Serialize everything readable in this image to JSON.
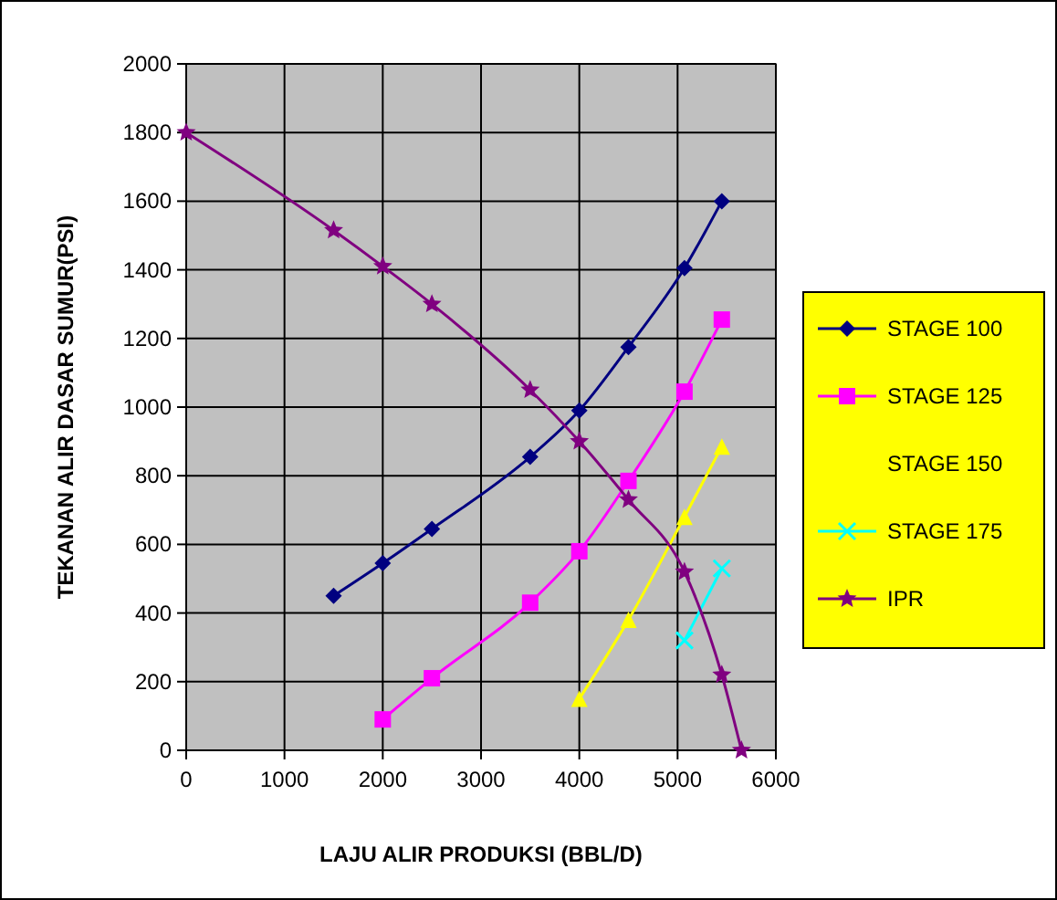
{
  "chart_data": {
    "type": "line",
    "xlabel": "LAJU ALIR PRODUKSI (BBL/D)",
    "ylabel": "TEKANAN ALIR DASAR SUMUR(PSI)",
    "xlim": [
      0,
      6000
    ],
    "ylim": [
      0,
      2000
    ],
    "xticks": [
      0,
      1000,
      2000,
      3000,
      4000,
      5000,
      6000
    ],
    "yticks": [
      0,
      200,
      400,
      600,
      800,
      1000,
      1200,
      1400,
      1600,
      1800,
      2000
    ],
    "grid": true,
    "legend": "right",
    "series": [
      {
        "name": "STAGE 100",
        "color": "#000080",
        "marker": "diamond",
        "x": [
          1500,
          2000,
          2500,
          3500,
          4000,
          4500,
          5070,
          5450
        ],
        "values": [
          450,
          545,
          645,
          855,
          990,
          1175,
          1405,
          1600
        ]
      },
      {
        "name": "STAGE 125",
        "color": "#ff00ff",
        "marker": "square",
        "x": [
          2000,
          2500,
          3500,
          4000,
          4500,
          5070,
          5450
        ],
        "values": [
          90,
          210,
          430,
          580,
          785,
          1045,
          1255
        ]
      },
      {
        "name": "STAGE 150",
        "color": "#ffff00",
        "marker": "triangle",
        "x": [
          4000,
          4500,
          5070,
          5450
        ],
        "values": [
          150,
          380,
          680,
          885
        ]
      },
      {
        "name": "STAGE 175",
        "color": "#00ffff",
        "marker": "cross",
        "x": [
          5070,
          5450
        ],
        "values": [
          320,
          530
        ]
      },
      {
        "name": "IPR",
        "color": "#800080",
        "marker": "star",
        "x": [
          0,
          1500,
          2000,
          2500,
          3500,
          4000,
          4500,
          5070,
          5450,
          5650
        ],
        "values": [
          1800,
          1515,
          1410,
          1300,
          1050,
          900,
          730,
          520,
          220,
          0
        ]
      }
    ]
  }
}
